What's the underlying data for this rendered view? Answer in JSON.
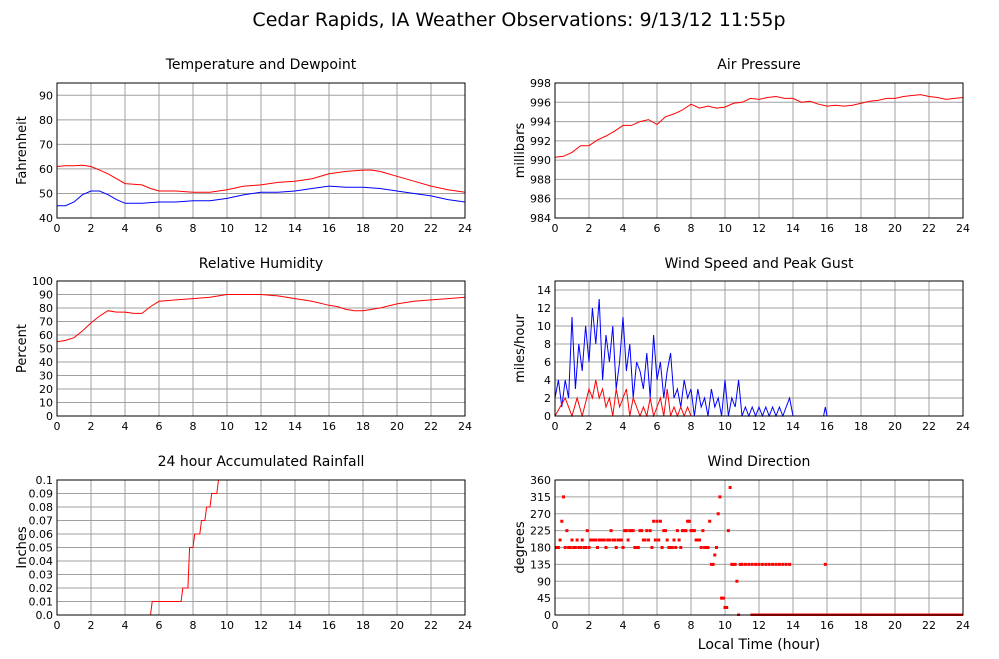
{
  "page": {
    "title": "Cedar Rapids, IA Weather Observations: 9/13/12 11:55p"
  },
  "colors": {
    "red": "#ff0000",
    "blue": "#0000ff",
    "grid": "#a0a0a0"
  },
  "chart_data": [
    {
      "id": "temp",
      "type": "line",
      "title": "Temperature and Dewpoint",
      "ylabel": "Fahrenheit",
      "xlabel": "",
      "xlim": [
        0,
        24
      ],
      "ylim": [
        40,
        95
      ],
      "xticks": [
        0,
        2,
        4,
        6,
        8,
        10,
        12,
        14,
        16,
        18,
        20,
        22,
        24
      ],
      "yticks": [
        40,
        50,
        60,
        70,
        80,
        90
      ],
      "series": [
        {
          "color": "#ff0000",
          "x": [
            0,
            0.5,
            1,
            1.5,
            2,
            2.5,
            3,
            3.5,
            4,
            5,
            5.5,
            6,
            7,
            8,
            9,
            10,
            11,
            12,
            13,
            14,
            15,
            16,
            17,
            18,
            18.5,
            19,
            20,
            21,
            22,
            23,
            24
          ],
          "y": [
            61,
            61.3,
            61.3,
            61.5,
            61,
            59.5,
            58,
            56,
            54,
            53.5,
            52,
            51,
            51,
            50.5,
            50.5,
            51.5,
            53,
            53.5,
            54.5,
            55,
            56,
            58,
            59,
            59.5,
            59.5,
            59,
            57,
            55,
            53,
            51.5,
            50.5
          ]
        },
        {
          "color": "#0000ff",
          "x": [
            0,
            0.5,
            1,
            1.5,
            2,
            2.5,
            3,
            3.5,
            4,
            5,
            6,
            7,
            8,
            9,
            10,
            11,
            12,
            13,
            14,
            15,
            16,
            17,
            18,
            19,
            20,
            21,
            22,
            23,
            24
          ],
          "y": [
            45,
            45,
            46.5,
            49.5,
            51,
            51,
            49.5,
            47.5,
            46,
            46,
            46.5,
            46.5,
            47,
            47,
            48,
            49.5,
            50.5,
            50.5,
            51,
            52,
            53,
            52.5,
            52.5,
            52,
            51,
            50,
            49,
            47.5,
            46.5
          ]
        }
      ]
    },
    {
      "id": "pressure",
      "type": "line",
      "title": "Air Pressure",
      "ylabel": "millibars",
      "xlabel": "",
      "xlim": [
        0,
        24
      ],
      "ylim": [
        984,
        998
      ],
      "xticks": [
        0,
        2,
        4,
        6,
        8,
        10,
        12,
        14,
        16,
        18,
        20,
        22,
        24
      ],
      "yticks": [
        984,
        986,
        988,
        990,
        992,
        994,
        996,
        998
      ],
      "series": [
        {
          "color": "#ff0000",
          "x": [
            0,
            0.5,
            1,
            1.5,
            2,
            2.5,
            3,
            3.5,
            4,
            4.5,
            5,
            5.5,
            6,
            6.5,
            7,
            7.5,
            8,
            8.5,
            9,
            9.5,
            10,
            10.5,
            11,
            11.5,
            12,
            12.5,
            13,
            13.5,
            14,
            14.5,
            15,
            15.5,
            16,
            16.5,
            17,
            17.5,
            18,
            18.5,
            19,
            19.5,
            20,
            20.5,
            21,
            21.5,
            22,
            22.5,
            23,
            23.5,
            24
          ],
          "y": [
            990.3,
            990.4,
            990.8,
            991.5,
            991.5,
            992.1,
            992.5,
            993,
            993.6,
            993.6,
            994,
            994.2,
            993.7,
            994.5,
            994.8,
            995.2,
            995.8,
            995.4,
            995.6,
            995.4,
            995.5,
            995.9,
            996,
            996.4,
            996.3,
            996.5,
            996.6,
            996.4,
            996.4,
            996,
            996.1,
            995.8,
            995.6,
            995.7,
            995.6,
            995.7,
            995.9,
            996.1,
            996.2,
            996.4,
            996.4,
            996.6,
            996.7,
            996.8,
            996.6,
            996.5,
            996.3,
            996.4,
            996.5
          ]
        }
      ]
    },
    {
      "id": "rh",
      "type": "line",
      "title": "Relative Humidity",
      "ylabel": "Percent",
      "xlabel": "",
      "xlim": [
        0,
        24
      ],
      "ylim": [
        0,
        100
      ],
      "xticks": [
        0,
        2,
        4,
        6,
        8,
        10,
        12,
        14,
        16,
        18,
        20,
        22,
        24
      ],
      "yticks": [
        0,
        10,
        20,
        30,
        40,
        50,
        60,
        70,
        80,
        90,
        100
      ],
      "series": [
        {
          "color": "#ff0000",
          "x": [
            0,
            0.5,
            1,
            1.5,
            2,
            2.5,
            3,
            3.5,
            4,
            4.5,
            5,
            5.5,
            6,
            7,
            8,
            9,
            9.5,
            10,
            11,
            12,
            12.5,
            13,
            14,
            15,
            16,
            16.5,
            17,
            17.5,
            18,
            19,
            20,
            21,
            22,
            23,
            24
          ],
          "y": [
            55,
            56,
            58,
            63,
            69,
            74,
            78,
            77,
            77,
            76,
            76,
            81,
            85,
            86,
            87,
            88,
            89,
            90,
            90,
            90,
            89.5,
            89,
            87,
            85,
            82,
            81,
            79,
            78,
            78,
            80,
            83,
            85,
            86,
            87,
            88
          ]
        }
      ]
    },
    {
      "id": "wind",
      "type": "line",
      "title": "Wind Speed and Peak Gust",
      "ylabel": "miles/hour",
      "xlabel": "",
      "xlim": [
        0,
        24
      ],
      "ylim": [
        0,
        15
      ],
      "xticks": [
        0,
        2,
        4,
        6,
        8,
        10,
        12,
        14,
        16,
        18,
        20,
        22,
        24
      ],
      "yticks": [
        0,
        2,
        4,
        6,
        8,
        10,
        12,
        14
      ],
      "series": [
        {
          "color": "#0000ff",
          "x": [
            0,
            0.2,
            0.4,
            0.6,
            0.8,
            1.0,
            1.2,
            1.4,
            1.6,
            1.8,
            2.0,
            2.2,
            2.4,
            2.6,
            2.8,
            3.0,
            3.2,
            3.4,
            3.6,
            3.8,
            4.0,
            4.2,
            4.4,
            4.6,
            4.8,
            5.0,
            5.2,
            5.4,
            5.6,
            5.8,
            6.0,
            6.2,
            6.4,
            6.6,
            6.8,
            7.0,
            7.2,
            7.4,
            7.6,
            7.8,
            8.0,
            8.2,
            8.4,
            8.6,
            8.8,
            9.0,
            9.2,
            9.4,
            9.6,
            9.8,
            10.0,
            10.2,
            10.4,
            10.6,
            10.8,
            11.0,
            11.2,
            11.4,
            11.6,
            11.8,
            12.0,
            12.2,
            12.4,
            12.6,
            12.8,
            13.0,
            13.2,
            13.4,
            13.6,
            13.8,
            14.0,
            15.8,
            15.9,
            16.0,
            24
          ],
          "y": [
            2,
            4,
            1,
            4,
            2,
            11,
            3,
            8,
            5,
            10,
            6,
            12,
            8,
            13,
            4,
            9,
            6,
            10,
            3,
            6,
            11,
            5,
            8,
            2,
            6,
            5,
            3,
            7,
            2,
            9,
            4,
            6,
            2,
            5,
            7,
            2,
            3,
            1,
            4,
            2,
            3,
            0,
            3,
            1,
            2,
            0,
            3,
            1,
            2,
            0,
            4,
            0,
            2,
            1,
            4,
            0,
            1,
            0,
            1,
            0,
            1,
            0,
            1,
            0,
            1,
            0,
            1,
            0,
            1,
            2,
            0,
            0,
            1,
            0,
            0
          ]
        },
        {
          "color": "#ff0000",
          "x": [
            0,
            0.3,
            0.6,
            1.0,
            1.3,
            1.6,
            2.0,
            2.2,
            2.4,
            2.6,
            2.8,
            3.0,
            3.2,
            3.4,
            3.6,
            3.8,
            4.0,
            4.2,
            4.4,
            4.6,
            4.8,
            5.0,
            5.2,
            5.4,
            5.6,
            5.8,
            6.0,
            6.2,
            6.4,
            6.6,
            6.8,
            7.0,
            7.2,
            7.4,
            7.6,
            7.8,
            8.0,
            24
          ],
          "y": [
            0,
            1,
            2,
            0,
            2,
            0,
            3,
            2,
            4,
            2,
            3,
            1,
            2,
            0,
            3,
            1,
            2,
            3,
            0,
            2,
            1,
            0,
            1,
            0,
            2,
            0,
            1,
            2,
            0,
            3,
            0,
            1,
            0,
            1,
            0,
            1,
            0,
            0
          ]
        }
      ]
    },
    {
      "id": "rain",
      "type": "line",
      "title": "24 hour Accumulated Rainfall",
      "ylabel": "Inches",
      "xlabel": "",
      "xlim": [
        0,
        24
      ],
      "ylim": [
        0,
        0.1
      ],
      "xticks": [
        0,
        2,
        4,
        6,
        8,
        10,
        12,
        14,
        16,
        18,
        20,
        22,
        24
      ],
      "yticks": [
        "0.0",
        "0.01",
        "0.02",
        "0.03",
        "0.04",
        "0.05",
        "0.06",
        "0.07",
        "0.08",
        "0.09",
        "0.1"
      ],
      "series": [
        {
          "color": "#ff0000",
          "x": [
            0,
            5.5,
            5.6,
            7.3,
            7.4,
            7.7,
            7.8,
            8.0,
            8.1,
            8.4,
            8.5,
            8.7,
            8.8,
            9.0,
            9.1,
            9.4,
            9.5,
            24
          ],
          "y": [
            0,
            0,
            0.01,
            0.01,
            0.02,
            0.02,
            0.05,
            0.05,
            0.06,
            0.06,
            0.07,
            0.07,
            0.08,
            0.08,
            0.09,
            0.09,
            0.1,
            0.1
          ]
        }
      ]
    },
    {
      "id": "dir",
      "type": "scatter",
      "title": "Wind Direction",
      "ylabel": "degrees",
      "xlabel": "Local Time (hour)",
      "xlim": [
        0,
        24
      ],
      "ylim": [
        0,
        360
      ],
      "xticks": [
        0,
        2,
        4,
        6,
        8,
        10,
        12,
        14,
        16,
        18,
        20,
        22,
        24
      ],
      "yticks": [
        0,
        45,
        90,
        135,
        180,
        225,
        270,
        315,
        360
      ],
      "series": [
        {
          "color": "#ff0000",
          "x": [
            0.1,
            0.2,
            0.3,
            0.4,
            0.5,
            0.6,
            0.7,
            0.8,
            0.9,
            1.0,
            1.1,
            1.2,
            1.3,
            1.4,
            1.5,
            1.6,
            1.7,
            1.8,
            1.9,
            2.0,
            2.1,
            2.2,
            2.3,
            2.4,
            2.5,
            2.6,
            2.7,
            2.8,
            2.9,
            3.0,
            3.1,
            3.2,
            3.3,
            3.4,
            3.5,
            3.6,
            3.7,
            3.8,
            3.9,
            4.0,
            4.1,
            4.2,
            4.3,
            4.4,
            4.5,
            4.6,
            4.7,
            4.8,
            4.9,
            5.0,
            5.1,
            5.2,
            5.3,
            5.4,
            5.5,
            5.6,
            5.7,
            5.8,
            5.9,
            6.0,
            6.1,
            6.2,
            6.3,
            6.4,
            6.5,
            6.6,
            6.7,
            6.8,
            6.9,
            7.0,
            7.1,
            7.2,
            7.3,
            7.4,
            7.5,
            7.6,
            7.7,
            7.8,
            7.9,
            8.0,
            8.1,
            8.2,
            8.3,
            8.4,
            8.5,
            8.6,
            8.7,
            8.8,
            8.9,
            9.0,
            9.1,
            9.2,
            9.3,
            9.4,
            9.5,
            9.6,
            9.7,
            9.8,
            9.9,
            10.0,
            10.1,
            10.2,
            10.3,
            10.4,
            10.5,
            10.6,
            10.7,
            10.8,
            10.9,
            11.0,
            11.2,
            11.4,
            11.6,
            11.8,
            12.0,
            12.2,
            12.4,
            12.6,
            12.8,
            13.0,
            13.2,
            13.4,
            13.6,
            13.8,
            15.9
          ],
          "y": [
            180,
            180,
            200,
            250,
            315,
            180,
            225,
            180,
            180,
            200,
            180,
            180,
            200,
            180,
            180,
            200,
            180,
            180,
            225,
            180,
            200,
            200,
            200,
            200,
            180,
            200,
            200,
            200,
            200,
            180,
            200,
            200,
            225,
            200,
            200,
            180,
            200,
            200,
            200,
            180,
            225,
            225,
            200,
            225,
            225,
            225,
            180,
            180,
            180,
            225,
            225,
            200,
            200,
            225,
            200,
            225,
            180,
            250,
            200,
            250,
            200,
            250,
            180,
            225,
            225,
            200,
            180,
            180,
            180,
            200,
            180,
            225,
            200,
            180,
            225,
            225,
            225,
            250,
            250,
            225,
            225,
            225,
            200,
            200,
            200,
            180,
            225,
            180,
            180,
            180,
            250,
            135,
            135,
            160,
            180,
            270,
            315,
            45,
            45,
            20,
            20,
            225,
            340,
            135,
            135,
            135,
            90,
            0,
            135,
            135,
            135,
            135,
            135,
            135,
            135,
            135,
            135,
            135,
            135,
            135,
            135,
            135,
            135,
            135,
            135
          ]
        },
        {
          "color": "#ff0000",
          "line": true,
          "x": [
            11.5,
            24
          ],
          "y": [
            0,
            0
          ]
        }
      ]
    }
  ]
}
